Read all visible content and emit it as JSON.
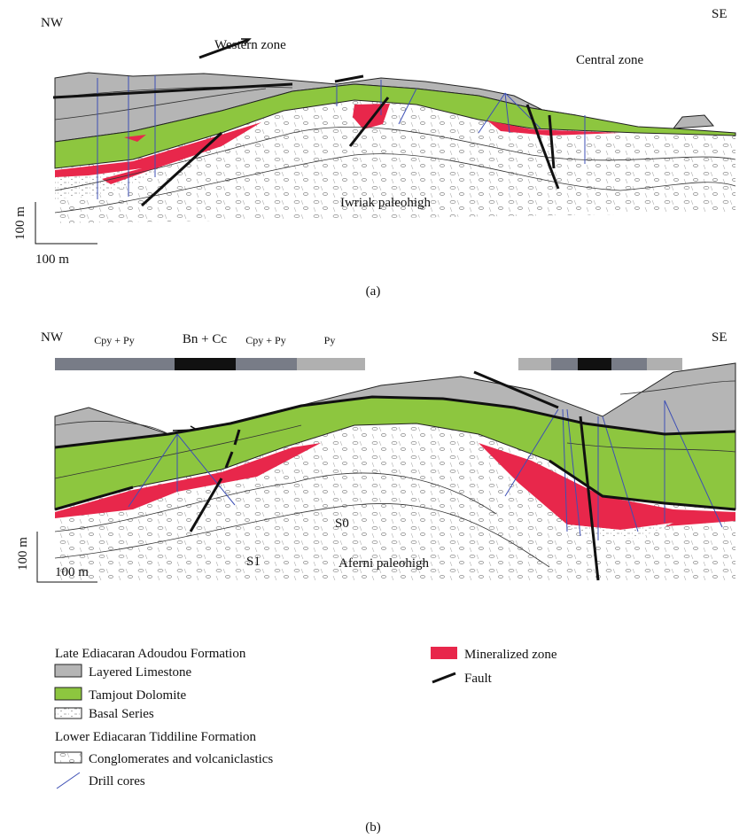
{
  "panel_a": {
    "nw": "NW",
    "se": "SE",
    "western_zone": "Western zone",
    "central_zone": "Central zone",
    "paleohigh": "Iwriak paleohigh",
    "scale_vertical": "100 m",
    "scale_horizontal": "100 m",
    "caption": "(a)"
  },
  "panel_b": {
    "nw": "NW",
    "se": "SE",
    "mineral_labels": [
      "Cpy + Py",
      "Bn + Cc",
      "Cpy + Py",
      "Py"
    ],
    "s0": "S0",
    "s1": "S1",
    "paleohigh": "Aferni paleohigh",
    "scale_vertical": "100 m",
    "scale_horizontal": "100 m",
    "caption": "(b)"
  },
  "legend": {
    "heading_1": "Late Ediacaran Adoudou Formation",
    "layered_limestone": "Layered Limestone",
    "tamjout_dolomite": "Tamjout Dolomite",
    "basal_series": "Basal Series",
    "heading_2": "Lower Ediacaran Tiddiline Formation",
    "conglomerates": "Conglomerates and volcaniclastics",
    "drill_cores": "Drill cores",
    "mineralized_zone": "Mineralized zone",
    "fault": "Fault"
  }
}
